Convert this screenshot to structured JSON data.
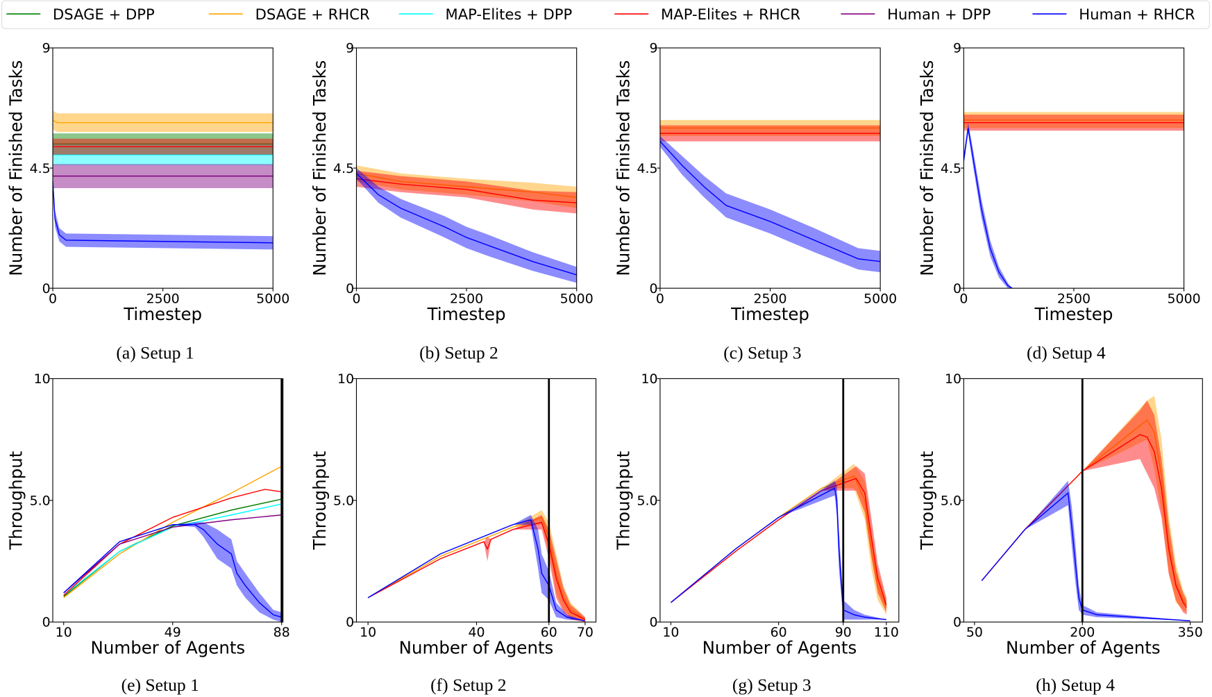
{
  "legend": [
    {
      "name": "DSAGE + DPP",
      "color": "#008000"
    },
    {
      "name": "DSAGE + RHCR",
      "color": "#FFA500"
    },
    {
      "name": "MAP-Elites + DPP",
      "color": "#00FFFF"
    },
    {
      "name": "MAP-Elites + RHCR",
      "color": "#FF0000"
    },
    {
      "name": "Human + DPP",
      "color": "#800080"
    },
    {
      "name": "Human + RHCR",
      "color": "#0000FF"
    }
  ],
  "chart_data": [
    {
      "type": "line",
      "caption": "(a) Setup 1",
      "xlabel": "Timestep",
      "ylabel": "Number of Finished Tasks",
      "xlim": [
        0,
        5000
      ],
      "ylim": [
        0,
        9
      ],
      "xticks": [
        "0",
        "2500",
        "5000"
      ],
      "yticks": [
        "0",
        "4.5",
        "9"
      ],
      "series": [
        {
          "name": "DSAGE + DPP",
          "x": [
            0,
            100,
            5000
          ],
          "y": [
            5.4,
            5.4,
            5.4
          ],
          "band": [
            0.4,
            0.4,
            0.4
          ]
        },
        {
          "name": "DSAGE + RHCR",
          "x": [
            0,
            100,
            5000
          ],
          "y": [
            6.3,
            6.2,
            6.2
          ],
          "band": [
            0.35,
            0.35,
            0.35
          ]
        },
        {
          "name": "MAP-Elites + DPP",
          "x": [
            0,
            100,
            5000
          ],
          "y": [
            5.0,
            5.0,
            5.0
          ],
          "band": [
            0.4,
            0.4,
            0.4
          ]
        },
        {
          "name": "MAP-Elites + RHCR",
          "x": [
            0,
            100,
            5000
          ],
          "y": [
            5.3,
            5.3,
            5.3
          ],
          "band": [
            0.3,
            0.3,
            0.3
          ]
        },
        {
          "name": "Human + DPP",
          "x": [
            0,
            100,
            5000
          ],
          "y": [
            4.2,
            4.2,
            4.2
          ],
          "band": [
            0.45,
            0.45,
            0.45
          ]
        },
        {
          "name": "Human + RHCR",
          "x": [
            0,
            50,
            150,
            300,
            5000
          ],
          "y": [
            4.0,
            2.6,
            2.0,
            1.8,
            1.7
          ],
          "band": [
            0.3,
            0.3,
            0.25,
            0.25,
            0.25
          ]
        }
      ]
    },
    {
      "type": "line",
      "caption": "(b) Setup 2",
      "xlabel": "Timestep",
      "ylabel": "Number of Finished Tasks",
      "xlim": [
        0,
        5000
      ],
      "ylim": [
        0,
        9
      ],
      "xticks": [
        "0",
        "2500",
        "5000"
      ],
      "yticks": [
        "0",
        "4.5",
        "9"
      ],
      "series": [
        {
          "name": "DSAGE + RHCR",
          "x": [
            0,
            1000,
            2500,
            4000,
            5000
          ],
          "y": [
            4.3,
            4.0,
            3.8,
            3.6,
            3.4
          ],
          "band": [
            0.3,
            0.3,
            0.3,
            0.35,
            0.4
          ]
        },
        {
          "name": "MAP-Elites + RHCR",
          "x": [
            0,
            1000,
            2500,
            4000,
            5000
          ],
          "y": [
            4.1,
            3.9,
            3.7,
            3.3,
            3.2
          ],
          "band": [
            0.3,
            0.3,
            0.3,
            0.35,
            0.4
          ]
        },
        {
          "name": "Human + RHCR",
          "x": [
            0,
            500,
            1000,
            2000,
            2500,
            3000,
            4000,
            5000
          ],
          "y": [
            4.3,
            3.5,
            3.0,
            2.3,
            1.9,
            1.6,
            1.0,
            0.5
          ],
          "band": [
            0.2,
            0.3,
            0.35,
            0.4,
            0.4,
            0.4,
            0.35,
            0.3
          ]
        }
      ]
    },
    {
      "type": "line",
      "caption": "(c) Setup 3",
      "xlabel": "Timestep",
      "ylabel": "Number of Finished Tasks",
      "xlim": [
        0,
        5000
      ],
      "ylim": [
        0,
        9
      ],
      "xticks": [
        "0",
        "2500",
        "5000"
      ],
      "yticks": [
        "0",
        "4.5",
        "9"
      ],
      "series": [
        {
          "name": "DSAGE + RHCR",
          "x": [
            0,
            5000
          ],
          "y": [
            6.0,
            6.0
          ],
          "band": [
            0.3,
            0.3
          ]
        },
        {
          "name": "MAP-Elites + RHCR",
          "x": [
            0,
            5000
          ],
          "y": [
            5.8,
            5.8
          ],
          "band": [
            0.3,
            0.3
          ]
        },
        {
          "name": "Human + RHCR",
          "x": [
            0,
            500,
            1000,
            1500,
            2500,
            3500,
            4500,
            5000
          ],
          "y": [
            5.5,
            4.6,
            3.8,
            3.1,
            2.5,
            1.8,
            1.1,
            1.0
          ],
          "band": [
            0.2,
            0.35,
            0.4,
            0.45,
            0.45,
            0.45,
            0.4,
            0.4
          ]
        }
      ]
    },
    {
      "type": "line",
      "caption": "(d) Setup 4",
      "xlabel": "Timestep",
      "ylabel": "Number of Finished Tasks",
      "xlim": [
        0,
        5000
      ],
      "ylim": [
        0,
        9
      ],
      "xticks": [
        "0",
        "2500",
        "5000"
      ],
      "yticks": [
        "0",
        "4.5",
        "9"
      ],
      "series": [
        {
          "name": "DSAGE + RHCR",
          "x": [
            0,
            5000
          ],
          "y": [
            6.3,
            6.3
          ],
          "band": [
            0.3,
            0.3
          ]
        },
        {
          "name": "MAP-Elites + RHCR",
          "x": [
            0,
            5000
          ],
          "y": [
            6.2,
            6.2
          ],
          "band": [
            0.3,
            0.3
          ]
        },
        {
          "name": "Human + RHCR",
          "x": [
            0,
            100,
            200,
            400,
            600,
            800,
            1000,
            1100
          ],
          "y": [
            4.8,
            6.0,
            5.0,
            3.0,
            1.5,
            0.6,
            0.1,
            0.0
          ],
          "band": [
            0.2,
            0.2,
            0.3,
            0.35,
            0.3,
            0.2,
            0.1,
            0.0
          ]
        }
      ]
    },
    {
      "type": "line",
      "caption": "(e) Setup 1",
      "xlabel": "Number of Agents",
      "ylabel": "Throughput",
      "xlim": [
        6.1,
        88.5
      ],
      "ylim": [
        0,
        10
      ],
      "xticks": [
        "10",
        "49",
        "88"
      ],
      "yticks": [
        "0",
        "5.0",
        "10"
      ],
      "vline": 88,
      "series": [
        {
          "name": "DSAGE + DPP",
          "x": [
            10,
            30,
            49,
            70,
            88
          ],
          "y": [
            1.05,
            2.9,
            3.95,
            4.6,
            5.05
          ],
          "band": [
            0,
            0,
            0,
            0,
            0
          ]
        },
        {
          "name": "DSAGE + RHCR",
          "x": [
            10,
            30,
            49,
            70,
            88
          ],
          "y": [
            1.0,
            2.8,
            4.1,
            5.3,
            6.4
          ],
          "band": [
            0,
            0,
            0,
            0,
            0
          ]
        },
        {
          "name": "MAP-Elites + DPP",
          "x": [
            10,
            30,
            49,
            70,
            88
          ],
          "y": [
            1.1,
            2.9,
            3.9,
            4.4,
            4.85
          ],
          "band": [
            0,
            0,
            0,
            0,
            0
          ]
        },
        {
          "name": "MAP-Elites + RHCR",
          "x": [
            10,
            30,
            49,
            70,
            82,
            88
          ],
          "y": [
            1.1,
            3.2,
            4.3,
            5.1,
            5.45,
            5.35
          ],
          "band": [
            0,
            0,
            0,
            0,
            0,
            0
          ]
        },
        {
          "name": "Human + DPP",
          "x": [
            10,
            30,
            49,
            70,
            88
          ],
          "y": [
            1.2,
            3.2,
            3.9,
            4.2,
            4.4
          ],
          "band": [
            0,
            0,
            0,
            0,
            0
          ]
        },
        {
          "name": "Human + RHCR",
          "x": [
            10,
            30,
            49,
            57,
            60,
            65,
            70,
            72,
            75,
            80,
            85,
            88
          ],
          "y": [
            1.2,
            3.3,
            4.0,
            4.0,
            3.8,
            3.2,
            2.8,
            2.0,
            1.5,
            0.8,
            0.3,
            0.2
          ],
          "band": [
            0,
            0,
            0,
            0.1,
            0.3,
            0.6,
            0.6,
            0.5,
            0.5,
            0.4,
            0.2,
            0.2
          ]
        }
      ]
    },
    {
      "type": "line",
      "caption": "(f) Setup 2",
      "xlabel": "Number of Agents",
      "ylabel": "Throughput",
      "xlim": [
        6.8,
        73
      ],
      "ylim": [
        0,
        10
      ],
      "xticks": [
        "10",
        "40",
        "60",
        "70"
      ],
      "yticks": [
        "0",
        "5.0",
        "10"
      ],
      "vline": 60,
      "series": [
        {
          "name": "DSAGE + RHCR",
          "x": [
            10,
            30,
            50,
            58,
            60,
            62,
            64,
            66,
            70
          ],
          "y": [
            1.0,
            2.7,
            3.9,
            4.3,
            3.5,
            2.0,
            1.0,
            0.5,
            0.1
          ],
          "band": [
            0,
            0,
            0,
            0.3,
            0.6,
            0.8,
            0.5,
            0.3,
            0.1
          ]
        },
        {
          "name": "MAP-Elites + RHCR",
          "x": [
            10,
            30,
            42,
            43,
            44,
            50,
            58,
            60,
            62,
            64,
            66,
            70
          ],
          "y": [
            1.0,
            2.6,
            3.3,
            3.0,
            3.4,
            3.8,
            4.1,
            3.2,
            1.8,
            0.9,
            0.4,
            0.1
          ],
          "band": [
            0,
            0,
            0,
            0.5,
            0,
            0,
            0.3,
            0.6,
            0.8,
            0.5,
            0.3,
            0.1
          ]
        },
        {
          "name": "Human + RHCR",
          "x": [
            10,
            30,
            50,
            55,
            57,
            58,
            60,
            62,
            65,
            70
          ],
          "y": [
            1.0,
            2.8,
            4.0,
            4.2,
            3.0,
            2.0,
            1.5,
            0.5,
            0.2,
            0.05
          ],
          "band": [
            0,
            0,
            0,
            0.2,
            0.8,
            0.8,
            0.6,
            0.3,
            0.1,
            0
          ]
        }
      ]
    },
    {
      "type": "line",
      "caption": "(g) Setup 3",
      "xlabel": "Number of Agents",
      "ylabel": "Throughput",
      "xlim": [
        5,
        115.8
      ],
      "ylim": [
        0,
        10
      ],
      "xticks": [
        "10",
        "60",
        "90",
        "110"
      ],
      "yticks": [
        "0",
        "5.0",
        "10"
      ],
      "vline": 90,
      "series": [
        {
          "name": "DSAGE + RHCR",
          "x": [
            10,
            40,
            60,
            80,
            95,
            100,
            103,
            106,
            110
          ],
          "y": [
            0.8,
            3.0,
            4.3,
            5.5,
            6.0,
            5.0,
            3.0,
            1.5,
            0.6
          ],
          "band": [
            0,
            0,
            0,
            0,
            0.5,
            0.8,
            0.8,
            0.6,
            0.3
          ]
        },
        {
          "name": "MAP-Elites + RHCR",
          "x": [
            10,
            40,
            60,
            80,
            96,
            100,
            103,
            106,
            110
          ],
          "y": [
            0.8,
            2.9,
            4.2,
            5.4,
            5.9,
            5.3,
            3.5,
            1.8,
            0.7
          ],
          "band": [
            0,
            0,
            0,
            0,
            0.5,
            0.8,
            0.8,
            0.6,
            0.3
          ]
        },
        {
          "name": "Human + RHCR",
          "x": [
            10,
            40,
            60,
            86,
            87,
            88,
            90,
            95,
            100,
            110
          ],
          "y": [
            0.8,
            3.0,
            4.3,
            5.5,
            5.0,
            3.0,
            0.5,
            0.3,
            0.2,
            0.1
          ],
          "band": [
            0,
            0,
            0,
            0.3,
            0.6,
            0.8,
            0.4,
            0.2,
            0.1,
            0
          ]
        }
      ]
    },
    {
      "type": "line",
      "caption": "(h) Setup 4",
      "xlabel": "Number of Agents",
      "ylabel": "Throughput",
      "xlim": [
        35,
        367
      ],
      "ylim": [
        0,
        10
      ],
      "xticks": [
        "50",
        "200",
        "350"
      ],
      "yticks": [
        "0",
        "5.0",
        "10"
      ],
      "vline": 200,
      "series": [
        {
          "name": "DSAGE + RHCR",
          "x": [
            60,
            120,
            200,
            290,
            300,
            310,
            320,
            330,
            340,
            345
          ],
          "y": [
            1.7,
            3.8,
            6.2,
            8.3,
            7.8,
            6.0,
            3.2,
            1.6,
            0.9,
            0.7
          ],
          "band": [
            0,
            0,
            0,
            0.8,
            1.5,
            1.5,
            1.2,
            0.8,
            0.4,
            0.3
          ]
        },
        {
          "name": "MAP-Elites + RHCR",
          "x": [
            60,
            120,
            200,
            280,
            290,
            300,
            310,
            320,
            330,
            340,
            345
          ],
          "y": [
            1.7,
            3.8,
            6.2,
            7.7,
            7.6,
            7.0,
            5.5,
            3.0,
            1.5,
            0.8,
            0.6
          ],
          "band": [
            0,
            0,
            0,
            1.0,
            1.5,
            1.5,
            1.2,
            1.0,
            0.6,
            0.4,
            0.3
          ]
        },
        {
          "name": "Human + RHCR",
          "x": [
            60,
            120,
            180,
            185,
            190,
            195,
            200,
            220,
            350
          ],
          "y": [
            1.7,
            3.8,
            5.3,
            4.0,
            2.5,
            1.0,
            0.5,
            0.3,
            0.05
          ],
          "band": [
            0,
            0,
            0.5,
            0.8,
            0.8,
            0.5,
            0.2,
            0.1,
            0
          ]
        }
      ]
    }
  ]
}
